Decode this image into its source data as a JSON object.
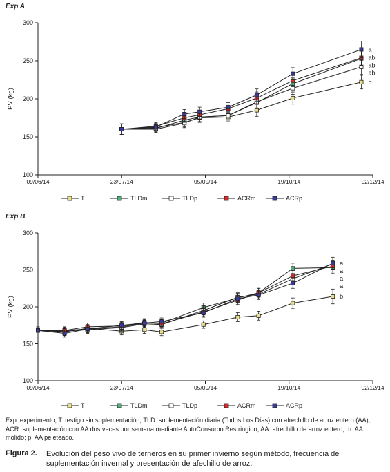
{
  "chart_data": [
    {
      "panel_label": "Exp A",
      "type": "line",
      "ylabel": "PV (kg)",
      "xlabel": "",
      "ylim": [
        100,
        300
      ],
      "yticks": [
        100,
        150,
        200,
        250,
        300
      ],
      "x_tick_labels": [
        "09/06/14",
        "23/07/14",
        "05/09/14",
        "19/10/14",
        "02/12/14"
      ],
      "x": [
        "2014-07-23",
        "2014-08-10",
        "2014-08-25",
        "2014-09-02",
        "2014-09-17",
        "2014-10-02",
        "2014-10-21",
        "2014-11-26"
      ],
      "series": [
        {
          "name": "T",
          "color": "#e8e08a",
          "values": [
            160,
            162,
            169,
            175,
            176,
            185,
            201,
            222
          ],
          "errors": [
            7,
            5,
            6,
            6,
            6,
            8,
            8,
            9
          ]
        },
        {
          "name": "TLDm",
          "color": "#4fae7a",
          "values": [
            160,
            161,
            172,
            176,
            178,
            195,
            220,
            253
          ],
          "errors": [
            7,
            5,
            6,
            6,
            6,
            8,
            8,
            10
          ]
        },
        {
          "name": "TLDp",
          "color": "#ffffff",
          "values": [
            160,
            160,
            168,
            176,
            178,
            196,
            214,
            242
          ],
          "errors": [
            7,
            5,
            6,
            6,
            6,
            8,
            8,
            10
          ]
        },
        {
          "name": "ACRm",
          "color": "#d42a2a",
          "values": [
            160,
            164,
            175,
            179,
            187,
            201,
            224,
            254
          ],
          "errors": [
            7,
            5,
            6,
            6,
            6,
            8,
            8,
            10
          ]
        },
        {
          "name": "ACRp",
          "color": "#3a3a9e",
          "values": [
            160,
            163,
            180,
            183,
            189,
            205,
            233,
            265
          ],
          "errors": [
            7,
            5,
            6,
            6,
            6,
            8,
            8,
            11
          ]
        }
      ],
      "annotations": [
        "a",
        "ab",
        "ab",
        "ab",
        "b"
      ]
    },
    {
      "panel_label": "Exp B",
      "type": "line",
      "ylabel": "PV (kg)",
      "xlabel": "",
      "ylim": [
        100,
        300
      ],
      "yticks": [
        100,
        150,
        200,
        250,
        300
      ],
      "x_tick_labels": [
        "09/06/14",
        "23/07/14",
        "05/09/14",
        "19/10/14",
        "02/12/14"
      ],
      "x": [
        "2014-06-09",
        "2014-06-23",
        "2014-07-05",
        "2014-07-23",
        "2014-08-04",
        "2014-08-13",
        "2014-09-04",
        "2014-09-22",
        "2014-10-03",
        "2014-10-21",
        "2014-11-11"
      ],
      "series": [
        {
          "name": "T",
          "color": "#e8e08a",
          "values": [
            168,
            166,
            171,
            167,
            169,
            166,
            176,
            186,
            188,
            205,
            214
          ],
          "errors": [
            5,
            5,
            5,
            5,
            5,
            5,
            5,
            6,
            6,
            7,
            10
          ]
        },
        {
          "name": "TLDm",
          "color": "#4fae7a",
          "values": [
            168,
            168,
            170,
            173,
            178,
            178,
            199,
            212,
            219,
            252,
            253
          ],
          "errors": [
            5,
            5,
            5,
            5,
            5,
            5,
            6,
            6,
            6,
            7,
            8
          ]
        },
        {
          "name": "TLDp",
          "color": "#ffffff",
          "values": [
            168,
            167,
            169,
            172,
            177,
            176,
            195,
            213,
            217,
            238,
            258
          ],
          "errors": [
            5,
            5,
            5,
            5,
            5,
            5,
            6,
            6,
            6,
            7,
            8
          ]
        },
        {
          "name": "ACRm",
          "color": "#d42a2a",
          "values": [
            168,
            168,
            173,
            174,
            179,
            177,
            193,
            209,
            219,
            242,
            255
          ],
          "errors": [
            5,
            5,
            5,
            5,
            5,
            5,
            6,
            6,
            6,
            7,
            8
          ]
        },
        {
          "name": "ACRp",
          "color": "#3a3a9e",
          "values": [
            168,
            164,
            170,
            175,
            178,
            180,
            192,
            211,
            216,
            232,
            259
          ],
          "errors": [
            5,
            5,
            5,
            5,
            5,
            5,
            6,
            6,
            6,
            7,
            8
          ]
        }
      ],
      "annotations": [
        "a",
        "a",
        "a",
        "a",
        "b"
      ]
    }
  ],
  "note": "Exp: experimento; T: testigo sin suplementación; TLD: suplementación diaria (Todos Los Días) con afrechillo de arroz entero (AA); ACR: suplementación con AA dos veces por semana mediante AutoConsumo Restringido; AA: afrechillo de arroz entero; m: AA molido; p: AA peleteado.",
  "caption": {
    "label": "Figura 2.",
    "text": "Evolución del peso vivo de terneros en su primer invierno según método, frecuencia de suplementación invernal y presentación de afechillo de arroz."
  }
}
